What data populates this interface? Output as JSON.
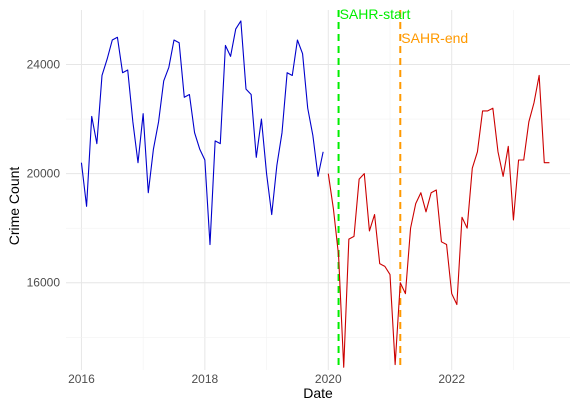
{
  "chart_data": {
    "type": "line",
    "title": "",
    "xlabel": "Date",
    "ylabel": "Crime Count",
    "xlim": [
      "2015-10-01",
      "2023-12-01"
    ],
    "ylim": [
      12800,
      26000
    ],
    "x_ticks": [
      {
        "label": "2016",
        "date": "2016-01-01"
      },
      {
        "label": "2018",
        "date": "2018-01-01"
      },
      {
        "label": "2020",
        "date": "2020-01-01"
      },
      {
        "label": "2022",
        "date": "2022-01-01"
      }
    ],
    "y_ticks": [
      16000,
      20000,
      24000
    ],
    "grid": true,
    "legend": "none",
    "series": [
      {
        "color": "#0000cc",
        "x": [
          "2016-01",
          "2016-02",
          "2016-03",
          "2016-04",
          "2016-05",
          "2016-06",
          "2016-07",
          "2016-08",
          "2016-09",
          "2016-10",
          "2016-11",
          "2016-12",
          "2017-01",
          "2017-02",
          "2017-03",
          "2017-04",
          "2017-05",
          "2017-06",
          "2017-07",
          "2017-08",
          "2017-09",
          "2017-10",
          "2017-11",
          "2017-12",
          "2018-01",
          "2018-02",
          "2018-03",
          "2018-04",
          "2018-05",
          "2018-06",
          "2018-07",
          "2018-08",
          "2018-09",
          "2018-10",
          "2018-11",
          "2018-12",
          "2019-01",
          "2019-02",
          "2019-03",
          "2019-04",
          "2019-05",
          "2019-06",
          "2019-07",
          "2019-08",
          "2019-09",
          "2019-10",
          "2019-11",
          "2019-12"
        ],
        "values": [
          20400,
          18800,
          22100,
          21100,
          23600,
          24200,
          24900,
          25000,
          23700,
          23800,
          21900,
          20400,
          22200,
          19300,
          20900,
          21900,
          23400,
          23900,
          24900,
          24800,
          22800,
          22900,
          21500,
          20900,
          20500,
          17400,
          21200,
          21100,
          24700,
          24300,
          25300,
          25600,
          23100,
          22900,
          20600,
          22000,
          20000,
          18500,
          20300,
          21500,
          23700,
          23600,
          24900,
          24400,
          22400,
          21400,
          19900,
          20800
        ]
      },
      {
        "color": "#cc0000",
        "x": [
          "2020-01",
          "2020-02",
          "2020-03",
          "2020-04",
          "2020-05",
          "2020-06",
          "2020-07",
          "2020-08",
          "2020-09",
          "2020-10",
          "2020-11",
          "2020-12",
          "2021-01",
          "2021-02",
          "2021-03",
          "2021-04",
          "2021-05",
          "2021-06",
          "2021-07",
          "2021-08",
          "2021-09",
          "2021-10",
          "2021-11",
          "2021-12",
          "2022-01",
          "2022-02",
          "2022-03",
          "2022-04",
          "2022-05",
          "2022-06",
          "2022-07",
          "2022-08",
          "2022-09",
          "2022-10",
          "2022-11",
          "2022-12",
          "2023-01",
          "2023-02",
          "2023-03",
          "2023-04",
          "2023-05",
          "2023-06",
          "2023-07",
          "2023-08"
        ],
        "values": [
          20000,
          18700,
          17000,
          12900,
          17600,
          17700,
          19800,
          20000,
          17900,
          18500,
          16700,
          16600,
          16300,
          13000,
          16000,
          15600,
          18000,
          18900,
          19300,
          18600,
          19300,
          19400,
          17500,
          17400,
          15600,
          15200,
          18400,
          18000,
          20200,
          20800,
          22300,
          22300,
          22400,
          20800,
          19900,
          21000,
          18300,
          20500,
          20500,
          21900,
          22600,
          23600,
          20400,
          20400
        ]
      }
    ],
    "annotations": [
      {
        "label": "SAHR-start",
        "date": "2020-03-01",
        "color": "#00ee00"
      },
      {
        "label": "SAHR-end",
        "date": "2021-03-01",
        "color": "#ff9900"
      }
    ]
  }
}
